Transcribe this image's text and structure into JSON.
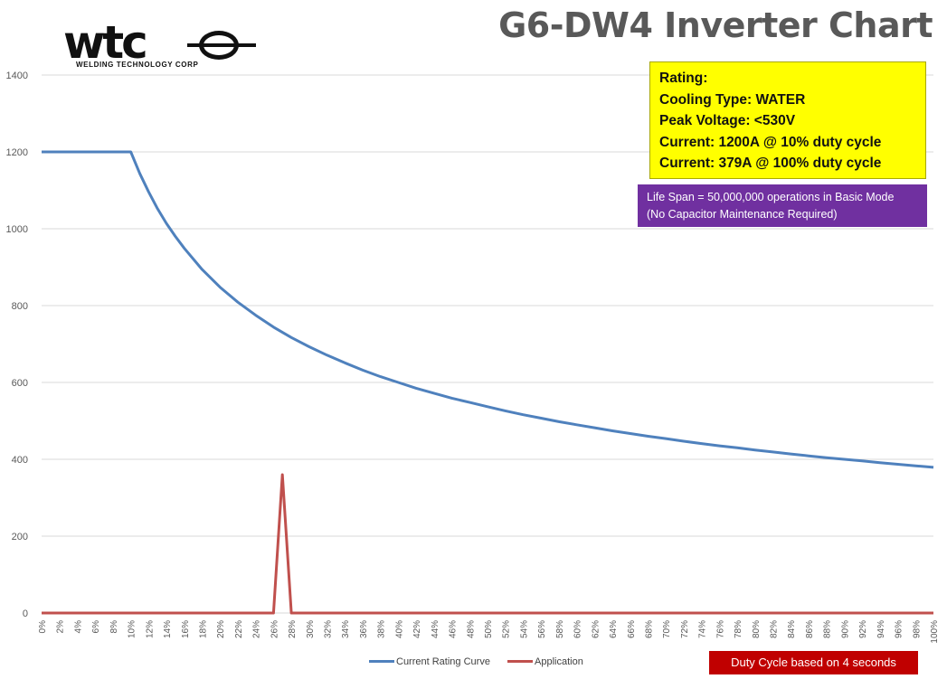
{
  "chart_data": {
    "type": "line",
    "title": "G6-DW4 Inverter Chart",
    "xlabel": "",
    "ylabel": "",
    "x_unit": "percent duty cycle",
    "x_ticks": [
      "0%",
      "2%",
      "4%",
      "6%",
      "8%",
      "10%",
      "12%",
      "14%",
      "16%",
      "18%",
      "20%",
      "22%",
      "24%",
      "26%",
      "28%",
      "30%",
      "32%",
      "34%",
      "36%",
      "38%",
      "40%",
      "42%",
      "44%",
      "46%",
      "48%",
      "50%",
      "52%",
      "54%",
      "56%",
      "58%",
      "60%",
      "62%",
      "64%",
      "66%",
      "68%",
      "70%",
      "72%",
      "74%",
      "76%",
      "78%",
      "80%",
      "82%",
      "84%",
      "86%",
      "88%",
      "90%",
      "92%",
      "94%",
      "96%",
      "98%",
      "100%"
    ],
    "ylim": [
      0,
      1400
    ],
    "y_ticks": [
      0,
      200,
      400,
      600,
      800,
      1000,
      1200,
      1400
    ],
    "grid": true,
    "legend_position": "bottom",
    "series": [
      {
        "name": "Current Rating Curve",
        "color": "#4f81bd",
        "x": [
          0,
          2,
          4,
          6,
          8,
          10,
          11,
          12,
          13,
          14,
          15,
          16,
          18,
          20,
          22,
          24,
          26,
          28,
          30,
          32,
          34,
          36,
          38,
          40,
          42,
          44,
          46,
          48,
          50,
          52,
          54,
          56,
          58,
          60,
          62,
          64,
          66,
          68,
          70,
          72,
          74,
          76,
          78,
          80,
          82,
          84,
          86,
          88,
          90,
          92,
          94,
          96,
          98,
          100
        ],
        "values": [
          1200,
          1200,
          1200,
          1200,
          1200,
          1200,
          1144,
          1096,
          1052,
          1014,
          980,
          949,
          894,
          848,
          809,
          775,
          744,
          717,
          693,
          671,
          651,
          632,
          615,
          600,
          585,
          572,
          559,
          548,
          537,
          526,
          516,
          507,
          498,
          490,
          482,
          474,
          467,
          460,
          454,
          447,
          441,
          435,
          430,
          424,
          419,
          414,
          409,
          404,
          400,
          396,
          391,
          387,
          383,
          379
        ]
      },
      {
        "name": "Application",
        "color": "#c0504d",
        "x": [
          0,
          26,
          27,
          28,
          100
        ],
        "values": [
          0,
          0,
          360,
          0,
          0
        ]
      }
    ],
    "annotations": {
      "rating_lines": [
        "Rating:",
        "Cooling Type: WATER",
        "Peak Voltage: <530V",
        "Current: 1200A @ 10% duty cycle",
        "Current: 379A @ 100% duty cycle"
      ],
      "life_span_lines": [
        "Life Span  = 50,000,000 operations in Basic Mode",
        "(No Capacitor Maintenance Required)"
      ],
      "duty_note": "Duty Cycle based on 4 seconds"
    },
    "colors": {
      "rating_box": "#ffff00",
      "life_span_box": "#7030a0",
      "duty_note_box": "#c00000",
      "gridline": "#d9d9d9",
      "title": "#595959"
    }
  },
  "logo": {
    "word": "wtc",
    "tagline": "WELDING TECHNOLOGY CORP"
  }
}
